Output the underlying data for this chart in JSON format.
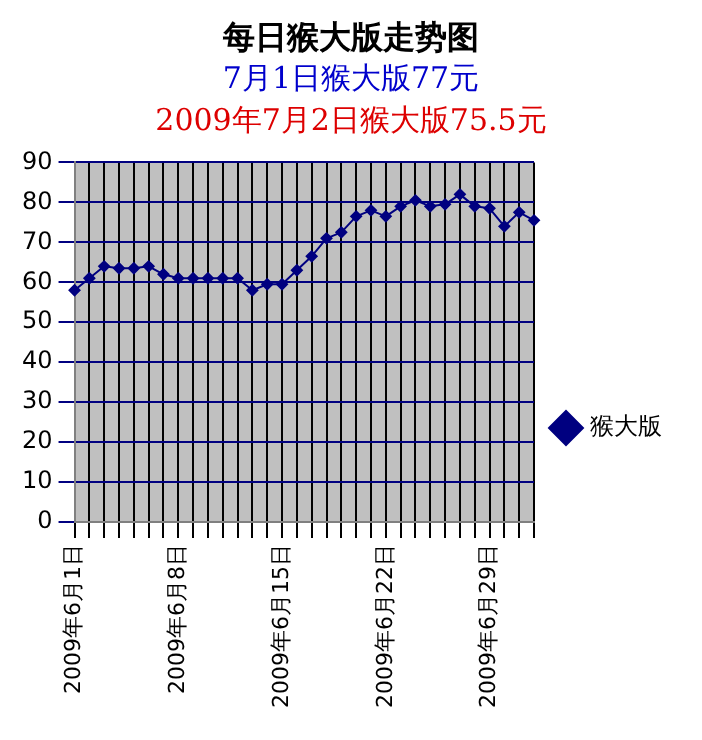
{
  "chart_data": {
    "type": "line",
    "title": "每日猴大版走势图",
    "subtitle": "7月1日猴大版77元",
    "annotations": [
      "2009年7月2日猴大版75.5元"
    ],
    "categories": [
      "2009年6月1日",
      null,
      null,
      null,
      null,
      null,
      null,
      "2009年6月8日",
      null,
      null,
      null,
      null,
      null,
      null,
      "2009年6月15日",
      null,
      null,
      null,
      null,
      null,
      null,
      "2009年6月22日",
      null,
      null,
      null,
      null,
      null,
      null,
      "2009年6月29日",
      null,
      null,
      null
    ],
    "series": [
      {
        "name": "猴大版",
        "color": "#000080",
        "values": [
          58,
          61,
          64,
          63.5,
          63.5,
          64,
          62,
          61,
          61,
          61,
          61,
          61,
          58,
          59.5,
          59.5,
          63,
          66.5,
          71,
          72.5,
          76.5,
          78,
          76.5,
          79,
          80.5,
          79,
          79.5,
          82,
          79,
          78.5,
          74,
          77.5,
          75.5
        ]
      }
    ],
    "ylim": [
      0,
      90
    ],
    "yticks": [
      0,
      10,
      20,
      30,
      40,
      50,
      60,
      70,
      80,
      90
    ],
    "grid": true,
    "legend": "right",
    "marker": "diamond",
    "line_style": "solid"
  }
}
